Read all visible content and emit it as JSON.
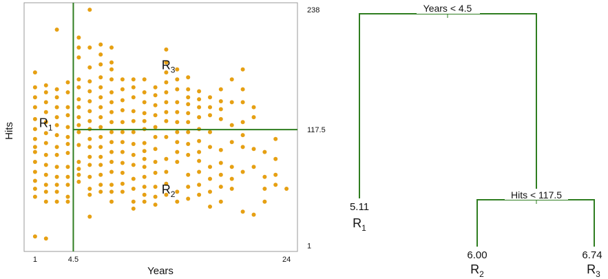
{
  "chart_data": [
    {
      "type": "scatter",
      "xlabel": "Years",
      "ylabel": "Hits",
      "xlim": [
        0,
        25
      ],
      "ylim": [
        -5,
        245
      ],
      "x_ticks": [
        "1",
        "4.5",
        "24"
      ],
      "y_ticks": [
        "1",
        "117.5",
        "238"
      ],
      "grid": false,
      "point_color": "#E6A013",
      "line_color": "#2E7D1F",
      "splits": [
        {
          "axis": "x",
          "value": 4.5
        },
        {
          "axis": "y",
          "value": 117.5,
          "x_from": 4.5
        }
      ],
      "regions": [
        {
          "base": "R",
          "sub": "1",
          "x": 2.0,
          "y": 120
        },
        {
          "base": "R",
          "sub": "2",
          "x": 13.2,
          "y": 53
        },
        {
          "base": "R",
          "sub": "3",
          "x": 13.2,
          "y": 178
        }
      ],
      "points": [
        [
          1,
          10
        ],
        [
          1,
          50
        ],
        [
          1,
          58
        ],
        [
          1,
          66
        ],
        [
          1,
          75
        ],
        [
          1,
          85
        ],
        [
          1,
          95
        ],
        [
          1,
          100
        ],
        [
          1,
          108
        ],
        [
          1,
          118
        ],
        [
          1,
          128
        ],
        [
          1,
          140
        ],
        [
          1,
          150
        ],
        [
          1,
          160
        ],
        [
          1,
          175
        ],
        [
          2,
          8
        ],
        [
          2,
          45
        ],
        [
          2,
          55
        ],
        [
          2,
          62
        ],
        [
          2,
          72
        ],
        [
          2,
          82
        ],
        [
          2,
          92
        ],
        [
          2,
          104
        ],
        [
          2,
          114
        ],
        [
          2,
          125
        ],
        [
          2,
          135
        ],
        [
          2,
          145
        ],
        [
          2,
          155
        ],
        [
          2,
          162
        ],
        [
          3,
          45
        ],
        [
          3,
          55
        ],
        [
          3,
          62
        ],
        [
          3,
          70
        ],
        [
          3,
          80
        ],
        [
          3,
          92
        ],
        [
          3,
          100
        ],
        [
          3,
          112
        ],
        [
          3,
          122
        ],
        [
          3,
          130
        ],
        [
          3,
          140
        ],
        [
          3,
          150
        ],
        [
          3,
          158
        ],
        [
          3,
          218
        ],
        [
          4,
          45
        ],
        [
          4,
          50
        ],
        [
          4,
          62
        ],
        [
          4,
          70
        ],
        [
          4,
          80
        ],
        [
          4,
          94
        ],
        [
          4,
          103
        ],
        [
          4,
          110
        ],
        [
          4,
          120
        ],
        [
          4,
          132
        ],
        [
          4,
          140
        ],
        [
          4,
          155
        ],
        [
          4,
          165
        ],
        [
          5,
          65
        ],
        [
          5,
          72
        ],
        [
          5,
          78
        ],
        [
          5,
          85
        ],
        [
          5,
          102
        ],
        [
          5,
          115
        ],
        [
          5,
          122
        ],
        [
          5,
          130
        ],
        [
          5,
          140
        ],
        [
          5,
          148
        ],
        [
          5,
          160
        ],
        [
          5,
          168
        ],
        [
          5,
          190
        ],
        [
          5,
          200
        ],
        [
          5,
          210
        ],
        [
          6,
          30
        ],
        [
          6,
          52
        ],
        [
          6,
          58
        ],
        [
          6,
          70
        ],
        [
          6,
          82
        ],
        [
          6,
          90
        ],
        [
          6,
          100
        ],
        [
          6,
          108
        ],
        [
          6,
          118
        ],
        [
          6,
          126
        ],
        [
          6,
          136
        ],
        [
          6,
          146
        ],
        [
          6,
          156
        ],
        [
          6,
          166
        ],
        [
          6,
          180
        ],
        [
          6,
          200
        ],
        [
          6,
          238
        ],
        [
          7,
          55
        ],
        [
          7,
          62
        ],
        [
          7,
          72
        ],
        [
          7,
          82
        ],
        [
          7,
          90
        ],
        [
          7,
          100
        ],
        [
          7,
          110
        ],
        [
          7,
          120
        ],
        [
          7,
          130
        ],
        [
          7,
          140
        ],
        [
          7,
          150
        ],
        [
          7,
          160
        ],
        [
          7,
          170
        ],
        [
          7,
          183
        ],
        [
          7,
          193
        ],
        [
          7,
          203
        ],
        [
          8,
          45
        ],
        [
          8,
          55
        ],
        [
          8,
          62
        ],
        [
          8,
          75
        ],
        [
          8,
          85
        ],
        [
          8,
          95
        ],
        [
          8,
          105
        ],
        [
          8,
          115
        ],
        [
          8,
          125
        ],
        [
          8,
          135
        ],
        [
          8,
          145
        ],
        [
          8,
          155
        ],
        [
          8,
          168
        ],
        [
          8,
          178
        ],
        [
          8,
          185
        ],
        [
          8,
          200
        ],
        [
          9,
          55
        ],
        [
          9,
          63
        ],
        [
          9,
          74
        ],
        [
          9,
          84
        ],
        [
          9,
          95
        ],
        [
          9,
          105
        ],
        [
          9,
          115
        ],
        [
          9,
          125
        ],
        [
          9,
          137
        ],
        [
          9,
          147
        ],
        [
          9,
          158
        ],
        [
          9,
          168
        ],
        [
          10,
          38
        ],
        [
          10,
          45
        ],
        [
          10,
          58
        ],
        [
          10,
          68
        ],
        [
          10,
          82
        ],
        [
          10,
          92
        ],
        [
          10,
          103
        ],
        [
          10,
          115
        ],
        [
          10,
          126
        ],
        [
          10,
          136
        ],
        [
          10,
          150
        ],
        [
          10,
          160
        ],
        [
          10,
          168
        ],
        [
          11,
          45
        ],
        [
          11,
          52
        ],
        [
          11,
          60
        ],
        [
          11,
          70
        ],
        [
          11,
          80
        ],
        [
          11,
          88
        ],
        [
          11,
          96
        ],
        [
          11,
          104
        ],
        [
          11,
          118
        ],
        [
          11,
          126
        ],
        [
          11,
          134
        ],
        [
          11,
          145
        ],
        [
          11,
          155
        ],
        [
          11,
          168
        ],
        [
          12,
          42
        ],
        [
          12,
          50
        ],
        [
          12,
          60
        ],
        [
          12,
          74
        ],
        [
          12,
          85
        ],
        [
          12,
          98
        ],
        [
          12,
          110
        ],
        [
          12,
          120
        ],
        [
          12,
          132
        ],
        [
          12,
          142
        ],
        [
          12,
          152
        ],
        [
          12,
          160
        ],
        [
          13,
          52
        ],
        [
          13,
          63
        ],
        [
          13,
          75
        ],
        [
          13,
          88
        ],
        [
          13,
          110
        ],
        [
          13,
          126
        ],
        [
          13,
          135
        ],
        [
          13,
          145
        ],
        [
          13,
          155
        ],
        [
          13,
          165
        ],
        [
          13,
          175
        ],
        [
          13,
          185
        ],
        [
          13,
          198
        ],
        [
          14,
          45
        ],
        [
          14,
          55
        ],
        [
          14,
          85
        ],
        [
          14,
          95
        ],
        [
          14,
          105
        ],
        [
          14,
          115
        ],
        [
          14,
          125
        ],
        [
          14,
          135
        ],
        [
          14,
          145
        ],
        [
          14,
          158
        ],
        [
          14,
          168
        ],
        [
          14,
          178
        ],
        [
          15,
          48
        ],
        [
          15,
          60
        ],
        [
          15,
          72
        ],
        [
          15,
          92
        ],
        [
          15,
          103
        ],
        [
          15,
          115
        ],
        [
          15,
          125
        ],
        [
          15,
          134
        ],
        [
          15,
          143
        ],
        [
          15,
          150
        ],
        [
          15,
          158
        ],
        [
          15,
          170
        ],
        [
          16,
          52
        ],
        [
          16,
          62
        ],
        [
          16,
          75
        ],
        [
          16,
          86
        ],
        [
          16,
          95
        ],
        [
          16,
          106
        ],
        [
          16,
          118
        ],
        [
          16,
          130
        ],
        [
          16,
          140
        ],
        [
          16,
          148
        ],
        [
          16,
          156
        ],
        [
          17,
          40
        ],
        [
          17,
          55
        ],
        [
          17,
          68
        ],
        [
          17,
          80
        ],
        [
          17,
          100
        ],
        [
          17,
          115
        ],
        [
          17,
          132
        ],
        [
          17,
          140
        ],
        [
          17,
          150
        ],
        [
          18,
          45
        ],
        [
          18,
          60
        ],
        [
          18,
          72
        ],
        [
          18,
          84
        ],
        [
          18,
          97
        ],
        [
          18,
          128
        ],
        [
          18,
          138
        ],
        [
          18,
          146
        ],
        [
          18,
          158
        ],
        [
          19,
          58
        ],
        [
          19,
          68
        ],
        [
          19,
          80
        ],
        [
          19,
          105
        ],
        [
          19,
          122
        ],
        [
          19,
          145
        ],
        [
          19,
          168
        ],
        [
          20,
          35
        ],
        [
          20,
          75
        ],
        [
          20,
          100
        ],
        [
          20,
          112
        ],
        [
          20,
          125
        ],
        [
          20,
          145
        ],
        [
          20,
          158
        ],
        [
          20,
          178
        ],
        [
          21,
          32
        ],
        [
          21,
          80
        ],
        [
          21,
          98
        ],
        [
          21,
          130
        ],
        [
          21,
          140
        ],
        [
          22,
          45
        ],
        [
          22,
          58
        ],
        [
          22,
          70
        ],
        [
          22,
          95
        ],
        [
          23,
          62
        ],
        [
          23,
          72
        ],
        [
          23,
          88
        ],
        [
          23,
          108
        ],
        [
          24,
          58
        ]
      ]
    },
    {
      "type": "tree",
      "line_color": "#2E7D1F",
      "root": {
        "label": "Years < 4.5",
        "left": {
          "value": "5.11",
          "region_base": "R",
          "region_sub": "1"
        },
        "right": {
          "label": "Hits < 117.5",
          "left": {
            "value": "6.00",
            "region_base": "R",
            "region_sub": "2"
          },
          "right": {
            "value": "6.74",
            "region_base": "R",
            "region_sub": "3"
          }
        }
      }
    }
  ]
}
